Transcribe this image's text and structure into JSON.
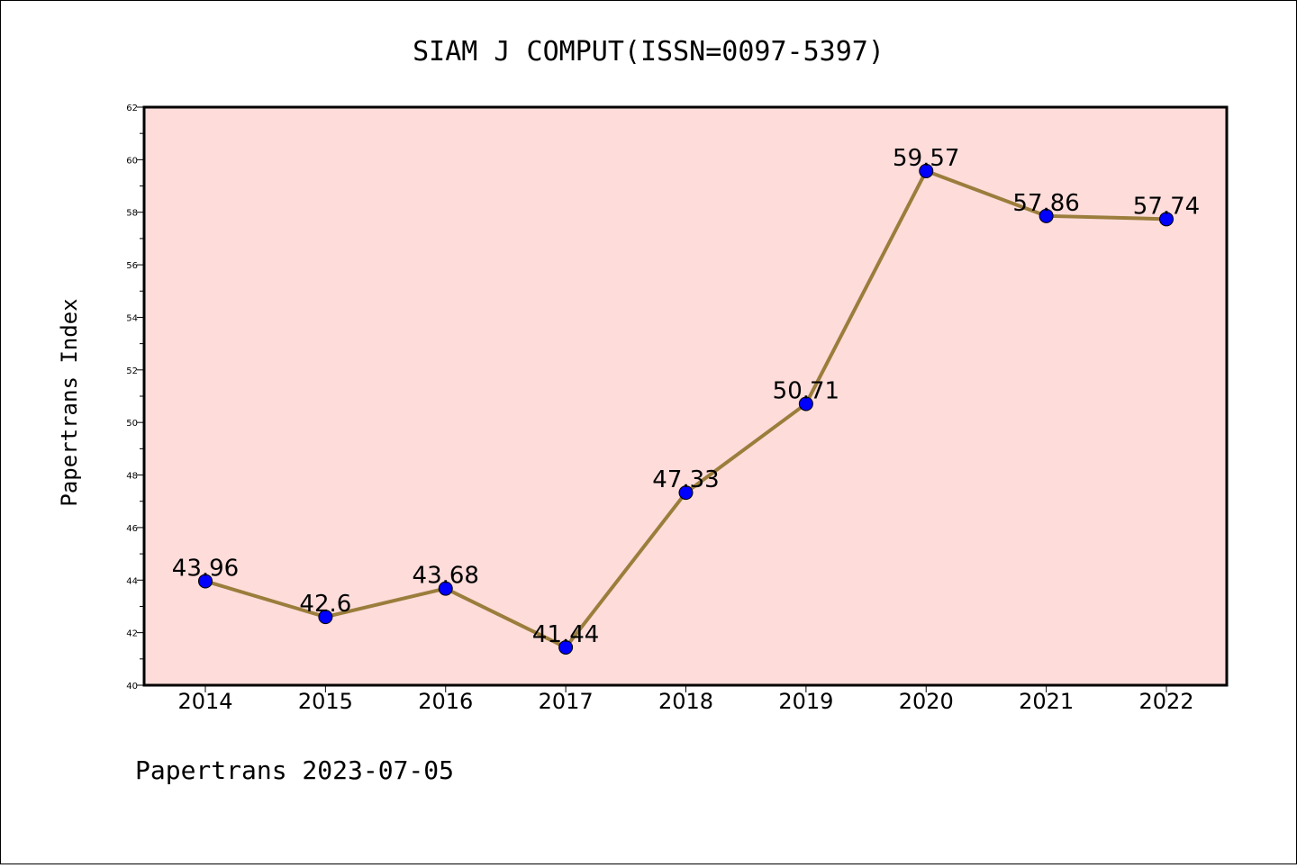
{
  "chart_data": {
    "type": "line",
    "title": "SIAM J COMPUT(ISSN=0097-5397)",
    "ylabel": "Papertrans Index",
    "xlabel": "",
    "categories": [
      "2014",
      "2015",
      "2016",
      "2017",
      "2018",
      "2019",
      "2020",
      "2021",
      "2022"
    ],
    "series": [
      {
        "values": [
          43.96,
          42.6,
          43.68,
          41.44,
          47.33,
          50.71,
          59.57,
          57.86,
          57.74
        ]
      }
    ],
    "data_labels": [
      "43.96",
      "42.6",
      "43.68",
      "41.44",
      "47.33",
      "50.71",
      "59.57",
      "57.86",
      "57.74"
    ],
    "ylim": [
      40,
      62
    ],
    "yticks": [
      "40",
      "42",
      "44",
      "46",
      "48",
      "50",
      "52",
      "54",
      "56",
      "58",
      "60",
      "62"
    ],
    "grid": false,
    "colors": {
      "plot_background": "#fddcda",
      "line": "#9b7d3c",
      "marker": "#0000ff",
      "marker_edge": "#000000"
    }
  },
  "footer": "Papertrans 2023-07-05"
}
